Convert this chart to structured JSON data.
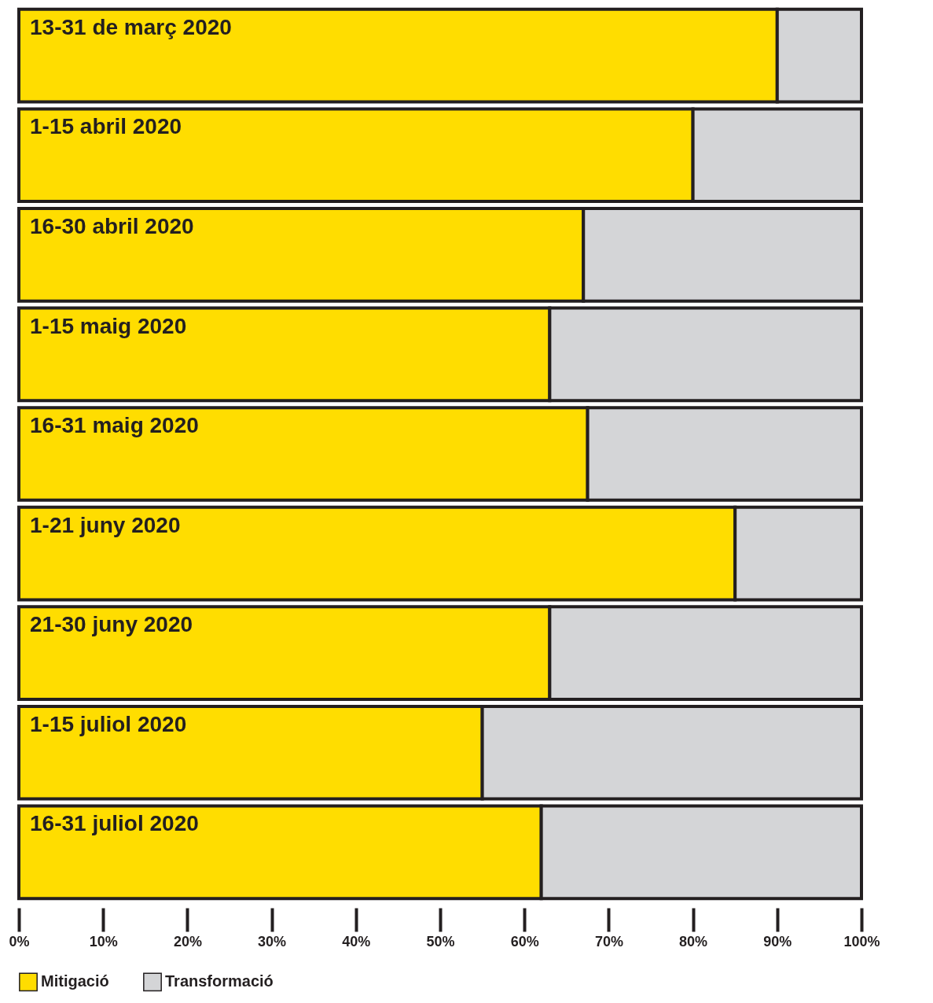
{
  "chart_data": {
    "type": "bar",
    "orientation": "horizontal",
    "stacked": true,
    "categories": [
      "13-31 de març 2020",
      "1-15 abril 2020",
      "16-30 abril 2020",
      "1-15 maig 2020",
      "16-31 maig 2020",
      "1-21 juny 2020",
      "21-30 juny 2020",
      "1-15 juliol 2020",
      "16-31 juliol 2020"
    ],
    "series": [
      {
        "name": "Mitigació",
        "color": "#ffdd00",
        "values": [
          90,
          80,
          67,
          63,
          67.5,
          85,
          63,
          55,
          62
        ]
      },
      {
        "name": "Transformació",
        "color": "#d4d5d7",
        "values": [
          10,
          20,
          33,
          37,
          32.5,
          15,
          37,
          45,
          38
        ]
      }
    ],
    "xlim": [
      0,
      100
    ],
    "xticks": [
      {
        "value": 0,
        "label": "0%"
      },
      {
        "value": 10,
        "label": "10%"
      },
      {
        "value": 20,
        "label": "20%"
      },
      {
        "value": 30,
        "label": "30%"
      },
      {
        "value": 40,
        "label": "40%"
      },
      {
        "value": 50,
        "label": "50%"
      },
      {
        "value": 60,
        "label": "60%"
      },
      {
        "value": 70,
        "label": "70%"
      },
      {
        "value": 80,
        "label": "80%"
      },
      {
        "value": 90,
        "label": "90%"
      },
      {
        "value": 100,
        "label": "100%"
      }
    ],
    "grid": false,
    "legend": "bottom left"
  }
}
